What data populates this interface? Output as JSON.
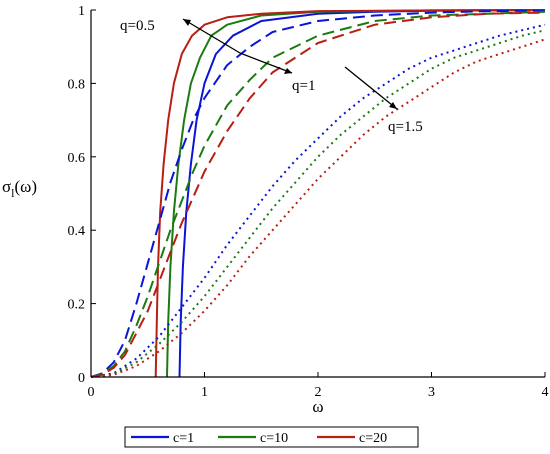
{
  "colors": {
    "c1": "#0a14d6",
    "c10": "#1c7a12",
    "c20": "#b81e12",
    "axis": "#000000"
  },
  "chart_data": {
    "type": "line",
    "xlabel": "ω",
    "ylabel_main": "σ",
    "ylabel_sub": "l",
    "ylabel_rest": "(ω)",
    "xlim": [
      0,
      4
    ],
    "ylim": [
      0,
      1
    ],
    "xticks": [
      0,
      1,
      2,
      3,
      4
    ],
    "yticks": [
      0,
      0.2,
      0.4,
      0.6,
      0.8,
      1
    ],
    "xtick_labels": [
      "0",
      "1",
      "2",
      "3",
      "4"
    ],
    "ytick_labels": [
      "0",
      "0.2",
      "0.4",
      "0.6",
      "0.8",
      "1"
    ],
    "legend_position": "bottom-center",
    "legend": [
      {
        "label": "c=1",
        "color": "#0a14d6"
      },
      {
        "label": "c=10",
        "color": "#1c7a12"
      },
      {
        "label": "c=20",
        "color": "#b81e12"
      }
    ],
    "annotations": [
      {
        "text": "q=0.5"
      },
      {
        "text": "q=1"
      },
      {
        "text": "q=1.5"
      }
    ],
    "series": [
      {
        "c": 1,
        "q": 0.5,
        "style": "solid",
        "color": "#0a14d6",
        "x": [
          0.78,
          0.79,
          0.81,
          0.84,
          0.88,
          0.93,
          1.0,
          1.1,
          1.25,
          1.5,
          2.0,
          2.5,
          3.0,
          4.0
        ],
        "y": [
          0,
          0.15,
          0.3,
          0.45,
          0.58,
          0.7,
          0.8,
          0.88,
          0.93,
          0.97,
          0.99,
          0.995,
          0.998,
          1.0
        ]
      },
      {
        "c": 10,
        "q": 0.5,
        "style": "solid",
        "color": "#1c7a12",
        "x": [
          0.67,
          0.68,
          0.7,
          0.73,
          0.77,
          0.82,
          0.88,
          0.96,
          1.06,
          1.2,
          1.5,
          2.0,
          3.0,
          4.0
        ],
        "y": [
          0,
          0.15,
          0.3,
          0.45,
          0.58,
          0.7,
          0.8,
          0.87,
          0.93,
          0.96,
          0.985,
          0.995,
          0.999,
          1.0
        ]
      },
      {
        "c": 20,
        "q": 0.5,
        "style": "solid",
        "color": "#b81e12",
        "x": [
          0.57,
          0.58,
          0.59,
          0.61,
          0.64,
          0.68,
          0.73,
          0.8,
          0.89,
          1.0,
          1.2,
          1.5,
          2.0,
          3.0,
          4.0
        ],
        "y": [
          0,
          0.15,
          0.3,
          0.45,
          0.58,
          0.7,
          0.8,
          0.88,
          0.93,
          0.96,
          0.98,
          0.99,
          0.997,
          0.999,
          1.0
        ]
      },
      {
        "c": 1,
        "q": 1,
        "style": "dashed",
        "color": "#0a14d6",
        "x": [
          0,
          0.1,
          0.2,
          0.3,
          0.4,
          0.5,
          0.6,
          0.7,
          0.8,
          0.9,
          1.0,
          1.2,
          1.4,
          1.6,
          2.0,
          2.5,
          3.0,
          3.5,
          4.0
        ],
        "y": [
          0,
          0.01,
          0.04,
          0.1,
          0.2,
          0.31,
          0.42,
          0.53,
          0.62,
          0.7,
          0.76,
          0.85,
          0.9,
          0.94,
          0.97,
          0.985,
          0.993,
          0.997,
          0.998
        ]
      },
      {
        "c": 10,
        "q": 1,
        "style": "dashed",
        "color": "#1c7a12",
        "x": [
          0,
          0.1,
          0.2,
          0.3,
          0.4,
          0.5,
          0.6,
          0.7,
          0.8,
          0.9,
          1.0,
          1.2,
          1.4,
          1.6,
          2.0,
          2.5,
          3.0,
          3.5,
          4.0
        ],
        "y": [
          0,
          0.008,
          0.03,
          0.07,
          0.14,
          0.22,
          0.31,
          0.4,
          0.48,
          0.56,
          0.63,
          0.74,
          0.81,
          0.87,
          0.93,
          0.97,
          0.985,
          0.99,
          0.995
        ]
      },
      {
        "c": 20,
        "q": 1,
        "style": "dashed",
        "color": "#b81e12",
        "x": [
          0,
          0.1,
          0.2,
          0.3,
          0.4,
          0.5,
          0.6,
          0.7,
          0.8,
          0.9,
          1.0,
          1.2,
          1.4,
          1.6,
          2.0,
          2.5,
          3.0,
          3.5,
          4.0
        ],
        "y": [
          0,
          0.006,
          0.025,
          0.06,
          0.12,
          0.18,
          0.26,
          0.34,
          0.42,
          0.49,
          0.56,
          0.67,
          0.76,
          0.83,
          0.91,
          0.96,
          0.98,
          0.99,
          0.993
        ]
      },
      {
        "c": 1,
        "q": 1.5,
        "style": "dotted",
        "color": "#0a14d6",
        "x": [
          0,
          0.2,
          0.4,
          0.6,
          0.8,
          1.0,
          1.2,
          1.4,
          1.6,
          1.8,
          2.0,
          2.2,
          2.4,
          2.6,
          2.8,
          3.0,
          3.2,
          3.4,
          3.6,
          3.8,
          4.0
        ],
        "y": [
          0,
          0.01,
          0.05,
          0.11,
          0.19,
          0.27,
          0.36,
          0.44,
          0.52,
          0.59,
          0.65,
          0.71,
          0.76,
          0.8,
          0.84,
          0.87,
          0.89,
          0.91,
          0.93,
          0.945,
          0.96
        ]
      },
      {
        "c": 10,
        "q": 1.5,
        "style": "dotted",
        "color": "#1c7a12",
        "x": [
          0,
          0.2,
          0.4,
          0.6,
          0.8,
          1.0,
          1.2,
          1.4,
          1.6,
          1.8,
          2.0,
          2.2,
          2.4,
          2.6,
          2.8,
          3.0,
          3.2,
          3.4,
          3.6,
          3.8,
          4.0
        ],
        "y": [
          0,
          0.008,
          0.04,
          0.09,
          0.15,
          0.22,
          0.3,
          0.38,
          0.46,
          0.53,
          0.6,
          0.66,
          0.71,
          0.76,
          0.8,
          0.84,
          0.87,
          0.89,
          0.91,
          0.93,
          0.945
        ]
      },
      {
        "c": 20,
        "q": 1.5,
        "style": "dotted",
        "color": "#b81e12",
        "x": [
          0,
          0.2,
          0.4,
          0.6,
          0.8,
          1.0,
          1.2,
          1.4,
          1.6,
          1.8,
          2.0,
          2.2,
          2.4,
          2.6,
          2.8,
          3.0,
          3.2,
          3.4,
          3.6,
          3.8,
          4.0
        ],
        "y": [
          0,
          0.006,
          0.03,
          0.07,
          0.12,
          0.18,
          0.25,
          0.33,
          0.4,
          0.47,
          0.54,
          0.6,
          0.66,
          0.71,
          0.75,
          0.79,
          0.83,
          0.86,
          0.88,
          0.9,
          0.92
        ]
      }
    ]
  }
}
